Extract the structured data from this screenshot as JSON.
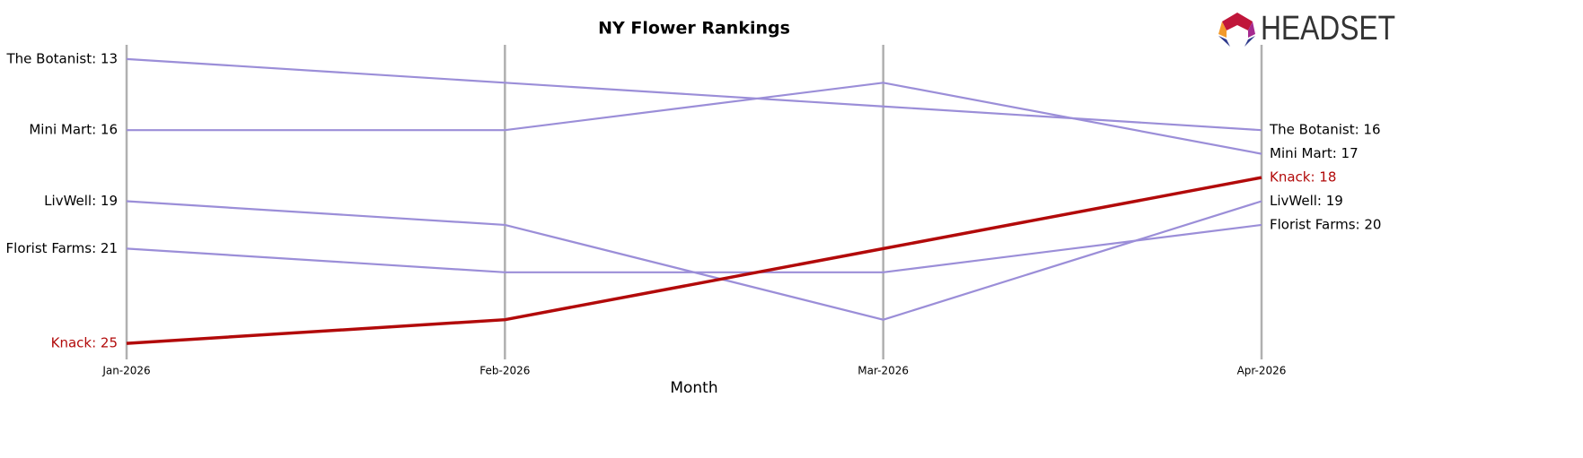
{
  "chart_data": {
    "type": "bump",
    "title": "NY Flower Rankings",
    "x_label": "Month",
    "categories": [
      "Jan-2026",
      "Feb-2026",
      "Mar-2026",
      "Apr-2026"
    ],
    "ylim": [
      25.6,
      12.4
    ],
    "series": [
      {
        "name": "The Botanist",
        "color": "#9b8ed8",
        "values": [
          13,
          14,
          15,
          16
        ],
        "value_labels": [
          "The Botanist: 13",
          null,
          null,
          "The Botanist: 16"
        ]
      },
      {
        "name": "Mini Mart",
        "color": "#9b8ed8",
        "values": [
          16,
          16,
          14,
          17
        ],
        "value_labels": [
          "Mini Mart: 16",
          null,
          null,
          "Mini Mart: 17"
        ]
      },
      {
        "name": "LivWell",
        "color": "#9b8ed8",
        "values": [
          19,
          20,
          24,
          19
        ],
        "value_labels": [
          "LivWell: 19",
          null,
          null,
          "LivWell: 19"
        ]
      },
      {
        "name": "Florist Farms",
        "color": "#9b8ed8",
        "values": [
          21,
          22,
          22,
          20
        ],
        "value_labels": [
          "Florist Farms: 21",
          null,
          null,
          "Florist Farms: 20"
        ]
      },
      {
        "name": "Knack",
        "color": "#b20a0a",
        "highlight": true,
        "values": [
          25,
          24,
          21,
          18
        ],
        "value_labels": [
          "Knack: 25",
          null,
          null,
          "Knack: 18"
        ]
      }
    ]
  },
  "logo": {
    "text": "HEADSET"
  }
}
